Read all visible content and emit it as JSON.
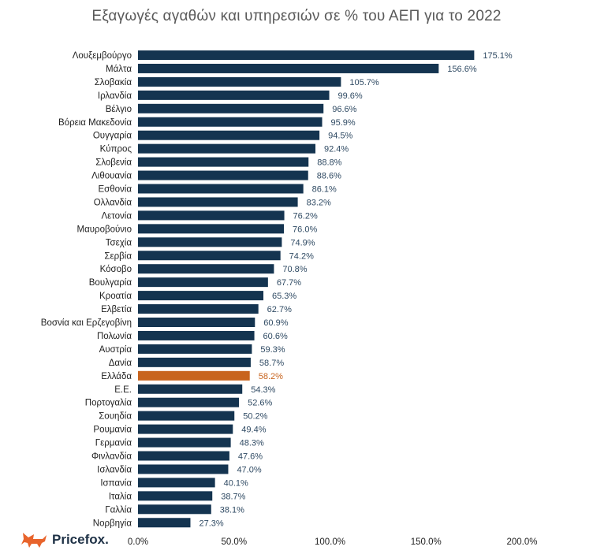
{
  "chart_data": {
    "type": "bar",
    "orientation": "horizontal",
    "title": "Εξαγωγές αγαθών και υπηρεσιών σε % του ΑΕΠ για το 2022",
    "categories": [
      "Λουξεμβούργο",
      "Μάλτα",
      "Σλοβακία",
      "Ιρλανδία",
      "Βέλγιο",
      "Βόρεια Μακεδονία",
      "Ουγγαρία",
      "Κύπρος",
      "Σλοβενία",
      "Λιθουανία",
      "Εσθονία",
      "Ολλανδία",
      "Λετονία",
      "Μαυροβούνιο",
      "Τσεχία",
      "Σερβία",
      "Κόσοβο",
      "Βουλγαρία",
      "Κροατία",
      "Ελβετία",
      "Βοσνία και Ερζεγοβίνη",
      "Πολωνία",
      "Αυστρία",
      "Δανία",
      "Ελλάδα",
      "Ε.Ε.",
      "Πορτογαλία",
      "Σουηδία",
      "Ρουμανία",
      "Γερμανία",
      "Φινλανδία",
      "Ισλανδία",
      "Ισπανία",
      "Ιταλία",
      "Γαλλία",
      "Νορβηγία"
    ],
    "values": [
      175.1,
      156.6,
      105.7,
      99.6,
      96.6,
      95.9,
      94.5,
      92.4,
      88.8,
      88.6,
      86.1,
      83.2,
      76.2,
      76.0,
      74.9,
      74.2,
      70.8,
      67.7,
      65.3,
      62.7,
      60.9,
      60.6,
      59.3,
      58.7,
      58.2,
      54.3,
      52.6,
      50.2,
      49.4,
      48.3,
      47.6,
      47.0,
      40.1,
      38.7,
      38.1,
      27.3
    ],
    "value_labels": [
      "175.1%",
      "156.6%",
      "105.7%",
      "99.6%",
      "96.6%",
      "95.9%",
      "94.5%",
      "92.4%",
      "88.8%",
      "88.6%",
      "86.1%",
      "83.2%",
      "76.2%",
      "76.0%",
      "74.9%",
      "74.2%",
      "70.8%",
      "67.7%",
      "65.3%",
      "62.7%",
      "60.9%",
      "60.6%",
      "59.3%",
      "58.7%",
      "58.2%",
      "54.3%",
      "52.6%",
      "50.2%",
      "49.4%",
      "48.3%",
      "47.6%",
      "47.0%",
      "40.1%",
      "38.7%",
      "38.1%",
      "27.3%"
    ],
    "highlight": "Ελλάδα",
    "xlim": [
      0,
      200
    ],
    "x_ticks": [
      "0.0%",
      "50.0%",
      "100.0%",
      "150.0%",
      "200.0%"
    ],
    "grid": false,
    "colors": {
      "bar": "#143450",
      "highlight_bar": "#c8641e",
      "value_text": "#2f4a63",
      "highlight_text": "#c8641e"
    }
  },
  "brand": {
    "name": "Pricefox.",
    "icon": "fox-icon",
    "color": "#e8642c"
  }
}
